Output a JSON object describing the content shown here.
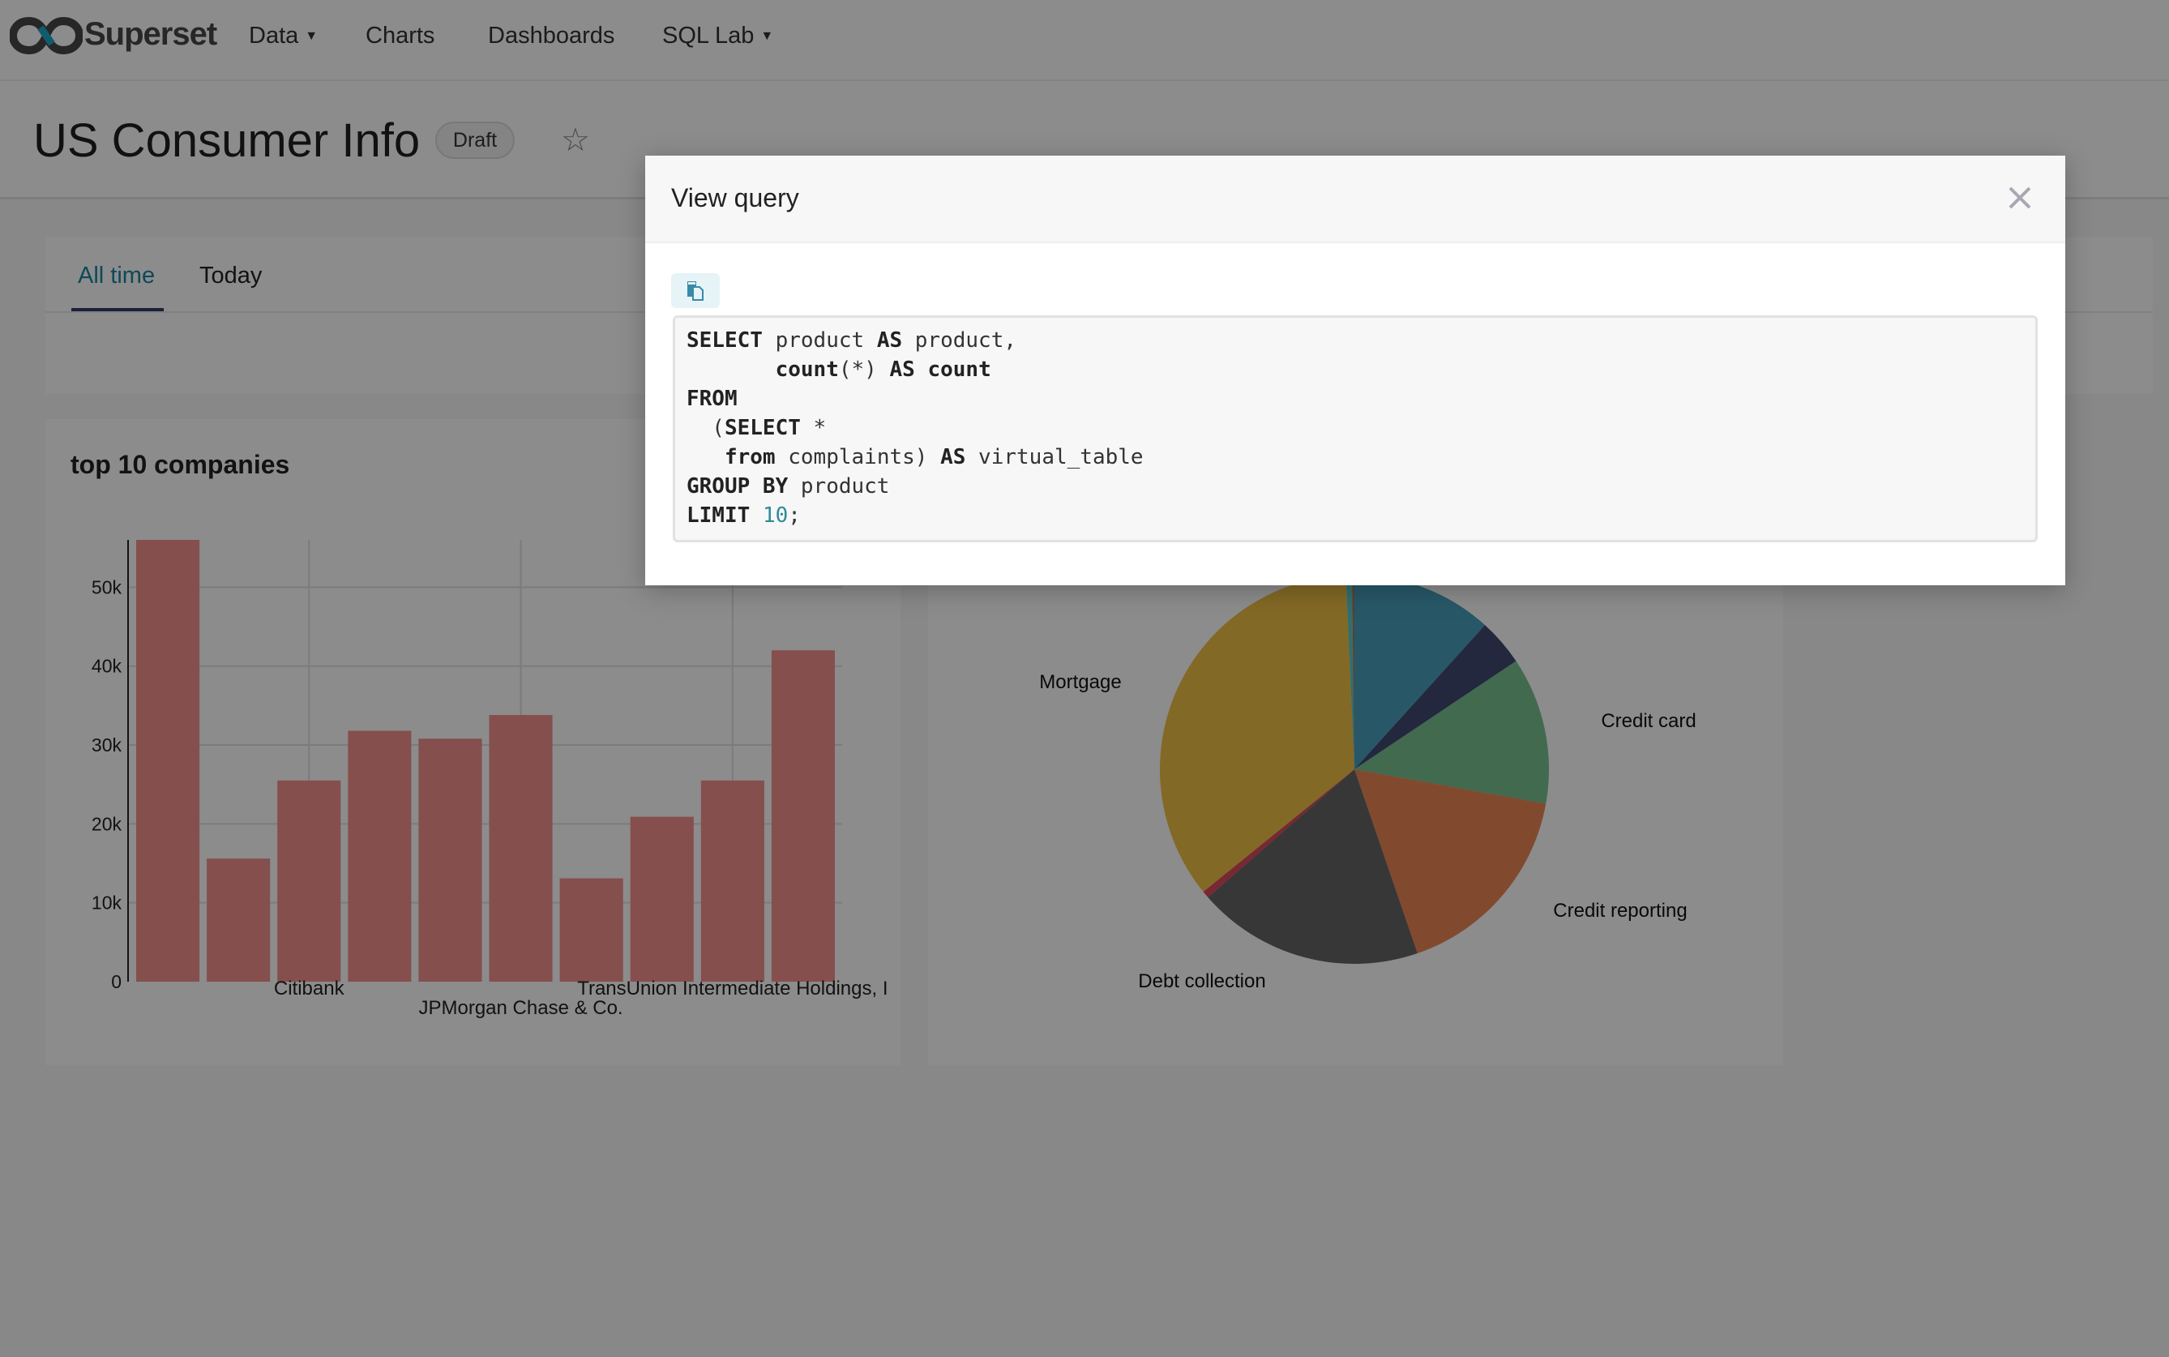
{
  "nav": {
    "brand": "Superset",
    "items": [
      {
        "label": "Data",
        "dropdown": true
      },
      {
        "label": "Charts",
        "dropdown": false
      },
      {
        "label": "Dashboards",
        "dropdown": false
      },
      {
        "label": "SQL Lab",
        "dropdown": true
      }
    ]
  },
  "header": {
    "title": "US Consumer Info",
    "badge": "Draft",
    "star_icon": "star-outline-icon"
  },
  "tabs": [
    {
      "label": "All time",
      "active": true
    },
    {
      "label": "Today",
      "active": false
    }
  ],
  "colors": {
    "accent": "#1a85a0",
    "overlay": "rgba(0,0,0,0.45)"
  },
  "modal": {
    "title": "View query",
    "copy_icon": "copy-clipboard-icon",
    "close_icon": "close-x-icon",
    "code_lines": [
      [
        {
          "t": "SELECT",
          "k": "kw"
        },
        {
          "t": " product "
        },
        {
          "t": "AS",
          "k": "kw"
        },
        {
          "t": " product,"
        }
      ],
      [
        {
          "t": "       "
        },
        {
          "t": "count",
          "k": "kw"
        },
        {
          "t": "(*) "
        },
        {
          "t": "AS",
          "k": "kw"
        },
        {
          "t": " "
        },
        {
          "t": "count",
          "k": "kw"
        }
      ],
      [
        {
          "t": "FROM",
          "k": "kw"
        }
      ],
      [
        {
          "t": "  ("
        },
        {
          "t": "SELECT",
          "k": "kw"
        },
        {
          "t": " *"
        }
      ],
      [
        {
          "t": "   "
        },
        {
          "t": "from",
          "k": "kw"
        },
        {
          "t": " complaints) "
        },
        {
          "t": "AS",
          "k": "kw"
        },
        {
          "t": " virtual_table"
        }
      ],
      [
        {
          "t": "GROUP BY",
          "k": "kw"
        },
        {
          "t": " product"
        }
      ],
      [
        {
          "t": "LIMIT",
          "k": "kw"
        },
        {
          "t": " "
        },
        {
          "t": "10",
          "k": "num"
        },
        {
          "t": ";"
        }
      ]
    ]
  },
  "chart_data": [
    {
      "type": "bar",
      "title": "top 10 companies",
      "categories": [
        "",
        "",
        "Citibank",
        "",
        "",
        "JPMorgan Chase & Co.",
        "",
        "",
        "TransUnion Intermediate Holdings, I",
        ""
      ],
      "values": [
        56000,
        15600,
        25500,
        31800,
        30800,
        33800,
        13100,
        20900,
        25500,
        42000
      ],
      "yticks": [
        "0",
        "10k",
        "20k",
        "30k",
        "40k",
        "50k"
      ],
      "ylim": [
        0,
        56000
      ],
      "grid": true,
      "color": "#F2908E"
    },
    {
      "type": "pie",
      "slices": [
        {
          "label": "",
          "value": 11.7,
          "color": "#49A0BD"
        },
        {
          "label": "",
          "value": 3.9,
          "color": "#414974"
        },
        {
          "label": "Credit card",
          "value": 12.2,
          "color": "#78C191"
        },
        {
          "label": "Credit reporting",
          "value": 16.9,
          "color": "#EC8754"
        },
        {
          "label": "Debt collection",
          "value": 18.8,
          "color": "#646464"
        },
        {
          "label": "",
          "value": 0.6,
          "color": "#DA4A5B"
        },
        {
          "label": "Mortgage",
          "value": 35.1,
          "color": "#EEC045"
        },
        {
          "label": "",
          "value": 0.5,
          "color": "#5BC8C8"
        },
        {
          "label": "",
          "value": 0.2,
          "color": "#A0785A"
        }
      ]
    }
  ]
}
